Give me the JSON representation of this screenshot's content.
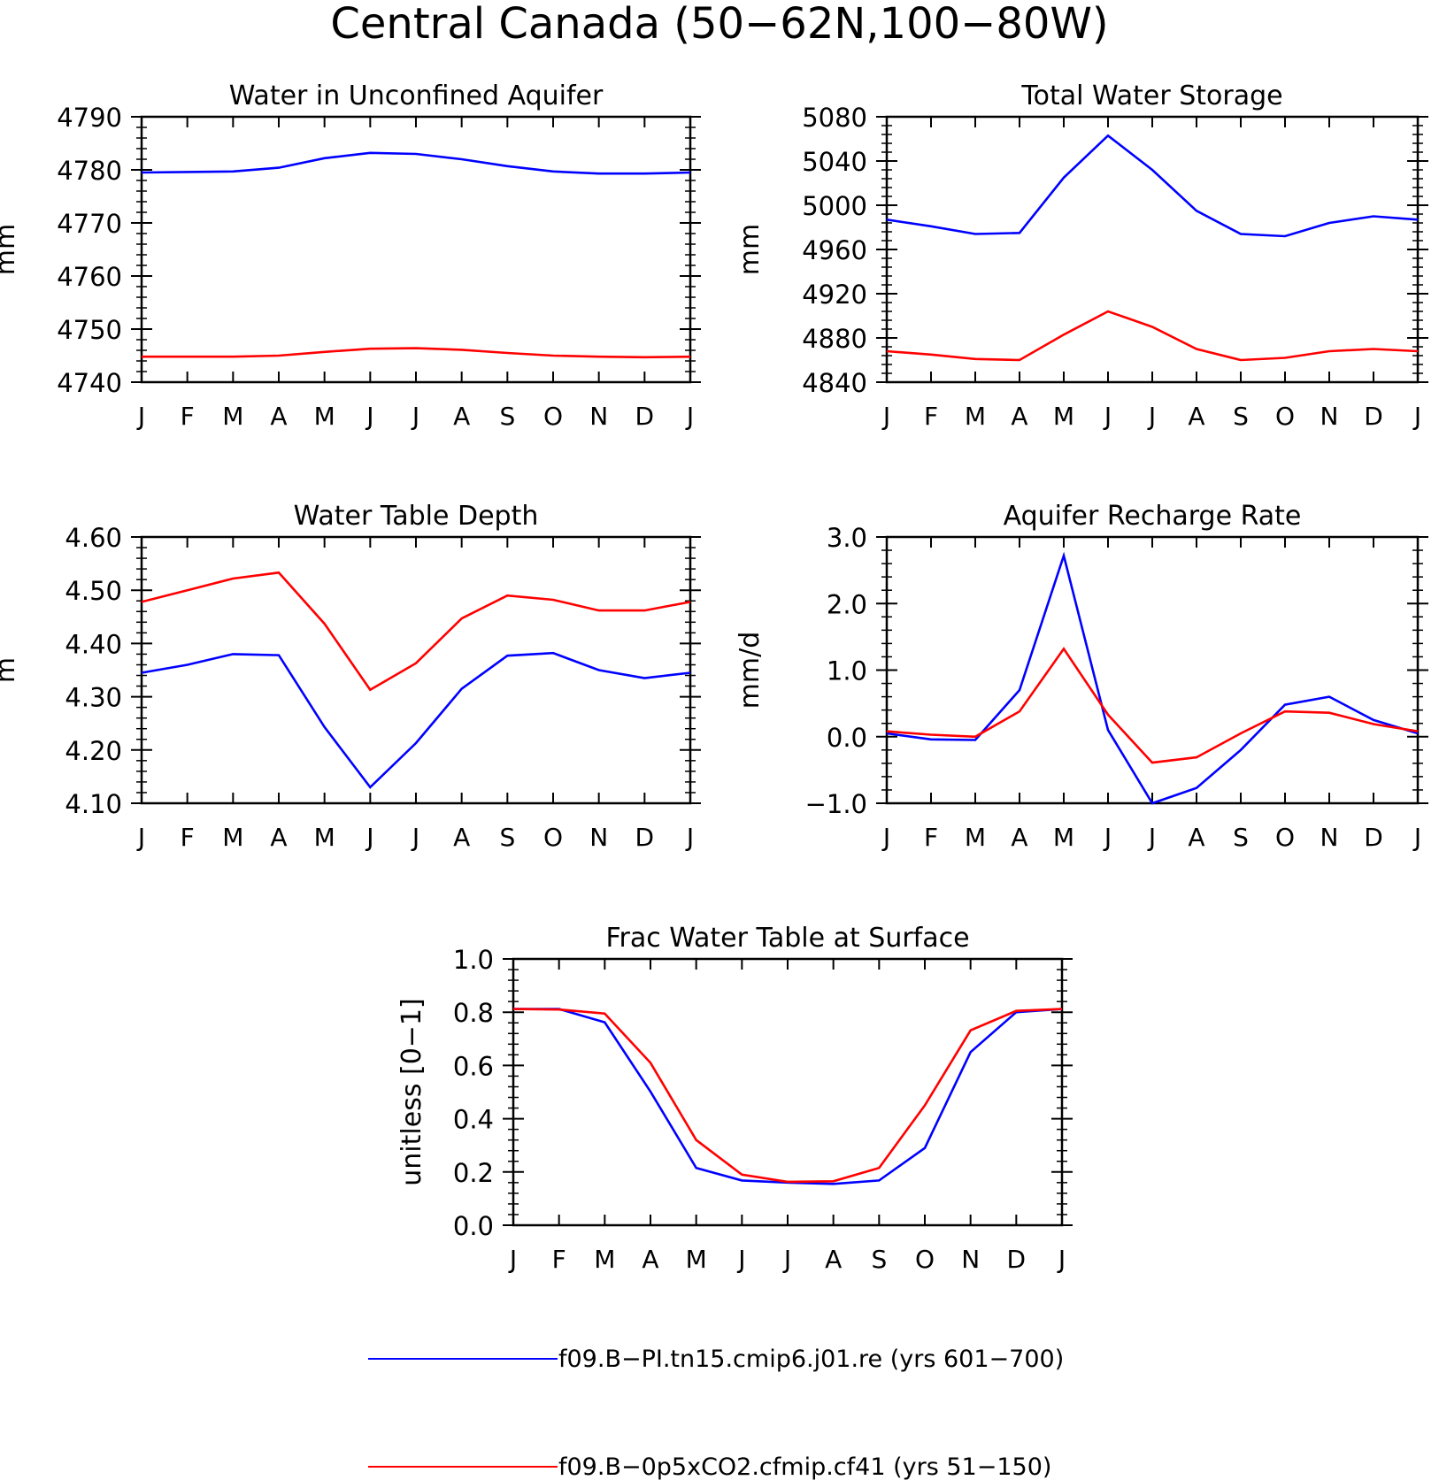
{
  "figure_title": "Central Canada (50−62N,100−80W)",
  "month_labels": [
    "J",
    "F",
    "M",
    "A",
    "M",
    "J",
    "J",
    "A",
    "S",
    "O",
    "N",
    "D",
    "J"
  ],
  "legend": [
    {
      "label": "f09.B−PI.tn15.cmip6.j01.re (yrs 601−700)",
      "color": "#0000ff"
    },
    {
      "label": "f09.B−0p5xCO2.cfmip.cf41 (yrs 51−150)",
      "color": "#ff0000"
    }
  ],
  "chart_data": [
    {
      "type": "line",
      "title": "Water in Unconfined Aquifer",
      "ylabel": "mm",
      "ylim": [
        4740,
        4790
      ],
      "yticks": [
        "4740",
        "4750",
        "4760",
        "4770",
        "4780",
        "4790"
      ],
      "x": [
        "J",
        "F",
        "M",
        "A",
        "M",
        "J",
        "J",
        "A",
        "S",
        "O",
        "N",
        "D",
        "J"
      ],
      "series": [
        {
          "color": "#0000ff",
          "values": [
            4779.5,
            4779.6,
            4779.7,
            4780.4,
            4782.2,
            4783.2,
            4783.0,
            4782.0,
            4780.7,
            4779.7,
            4779.3,
            4779.3,
            4779.5
          ]
        },
        {
          "color": "#ff0000",
          "values": [
            4744.8,
            4744.8,
            4744.8,
            4745.0,
            4745.7,
            4746.3,
            4746.4,
            4746.1,
            4745.5,
            4745.0,
            4744.8,
            4744.7,
            4744.8
          ]
        }
      ]
    },
    {
      "type": "line",
      "title": "Total Water Storage",
      "ylabel": "mm",
      "ylim": [
        4840,
        5080
      ],
      "yticks": [
        "4840",
        "4880",
        "4920",
        "4960",
        "5000",
        "5040",
        "5080"
      ],
      "x": [
        "J",
        "F",
        "M",
        "A",
        "M",
        "J",
        "J",
        "A",
        "S",
        "O",
        "N",
        "D",
        "J"
      ],
      "series": [
        {
          "color": "#0000ff",
          "values": [
            4987,
            4981,
            4974,
            4975,
            5025,
            5063,
            5032,
            4995,
            4974,
            4972,
            4984,
            4990,
            4987
          ]
        },
        {
          "color": "#ff0000",
          "values": [
            4868,
            4865,
            4861,
            4860,
            4883,
            4904,
            4890,
            4870,
            4860,
            4862,
            4868,
            4870,
            4868
          ]
        }
      ]
    },
    {
      "type": "line",
      "title": "Water Table Depth",
      "ylabel": "m",
      "ylim": [
        4.1,
        4.6
      ],
      "yticks": [
        "4.10",
        "4.20",
        "4.30",
        "4.40",
        "4.50",
        "4.60"
      ],
      "x": [
        "J",
        "F",
        "M",
        "A",
        "M",
        "J",
        "J",
        "A",
        "S",
        "O",
        "N",
        "D",
        "J"
      ],
      "series": [
        {
          "color": "#0000ff",
          "values": [
            4.345,
            4.36,
            4.38,
            4.378,
            4.243,
            4.13,
            4.213,
            4.315,
            4.377,
            4.382,
            4.35,
            4.335,
            4.345
          ]
        },
        {
          "color": "#ff0000",
          "values": [
            4.478,
            4.5,
            4.522,
            4.533,
            4.437,
            4.313,
            4.363,
            4.447,
            4.49,
            4.482,
            4.462,
            4.462,
            4.478
          ]
        }
      ]
    },
    {
      "type": "line",
      "title": "Aquifer Recharge Rate",
      "ylabel": "mm/d",
      "ylim": [
        -1.0,
        3.0
      ],
      "yticks": [
        "−1.0",
        "0.0",
        "1.0",
        "2.0",
        "3.0"
      ],
      "x": [
        "J",
        "F",
        "M",
        "A",
        "M",
        "J",
        "J",
        "A",
        "S",
        "O",
        "N",
        "D",
        "J"
      ],
      "series": [
        {
          "color": "#0000ff",
          "values": [
            0.05,
            -0.04,
            -0.05,
            0.7,
            2.72,
            0.1,
            -1.0,
            -0.77,
            -0.2,
            0.48,
            0.6,
            0.25,
            0.05
          ]
        },
        {
          "color": "#ff0000",
          "values": [
            0.08,
            0.03,
            0.0,
            0.38,
            1.32,
            0.33,
            -0.39,
            -0.31,
            0.05,
            0.38,
            0.36,
            0.19,
            0.08
          ]
        }
      ]
    },
    {
      "type": "line",
      "title": "Frac Water Table at Surface",
      "ylabel": "unitless [0−1]",
      "ylim": [
        0.0,
        1.0
      ],
      "yticks": [
        "0.0",
        "0.2",
        "0.4",
        "0.6",
        "0.8",
        "1.0"
      ],
      "x": [
        "J",
        "F",
        "M",
        "A",
        "M",
        "J",
        "J",
        "A",
        "S",
        "O",
        "N",
        "D",
        "J"
      ],
      "series": [
        {
          "color": "#0000ff",
          "values": [
            0.812,
            0.812,
            0.762,
            0.502,
            0.215,
            0.168,
            0.16,
            0.155,
            0.168,
            0.29,
            0.65,
            0.8,
            0.812
          ]
        },
        {
          "color": "#ff0000",
          "values": [
            0.812,
            0.81,
            0.795,
            0.61,
            0.32,
            0.19,
            0.163,
            0.165,
            0.215,
            0.45,
            0.732,
            0.805,
            0.812
          ]
        }
      ]
    }
  ]
}
